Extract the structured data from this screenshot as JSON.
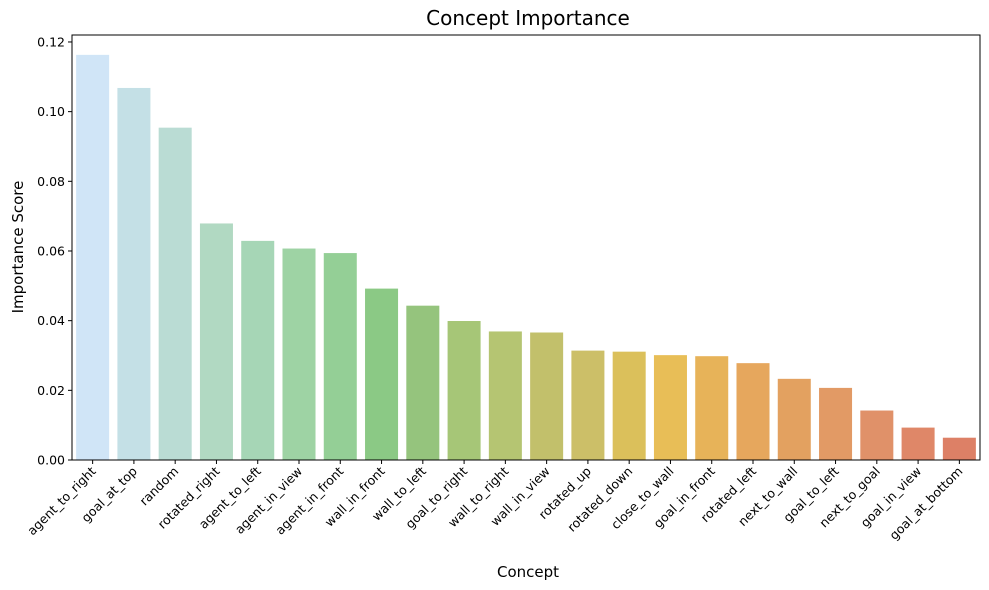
{
  "chart_data": {
    "type": "bar",
    "title": "Concept Importance",
    "xlabel": "Concept",
    "ylabel": "Importance Score",
    "ylim": [
      0,
      0.122
    ],
    "yticks": [
      "0.00",
      "0.02",
      "0.04",
      "0.06",
      "0.08",
      "0.10",
      "0.12"
    ],
    "grid": false,
    "categories": [
      "agent_to_right",
      "goal_at_top",
      "random",
      "rotated_right",
      "agent_to_left",
      "agent_in_view",
      "agent_in_front",
      "wall_in_front",
      "wall_to_left",
      "goal_to_right",
      "wall_to_right",
      "wall_in_view",
      "rotated_up",
      "rotated_down",
      "close_to_wall",
      "goal_in_front",
      "rotated_left",
      "next_to_wall",
      "goal_to_left",
      "next_to_goal",
      "goal_in_view",
      "goal_at_bottom"
    ],
    "values": [
      0.1163,
      0.1068,
      0.0954,
      0.0679,
      0.0629,
      0.0607,
      0.0594,
      0.0492,
      0.0443,
      0.0399,
      0.0369,
      0.0366,
      0.0314,
      0.0311,
      0.0301,
      0.0298,
      0.0278,
      0.0233,
      0.0207,
      0.0142,
      0.0093,
      0.0064
    ],
    "colors": [
      "#d0e5f7",
      "#c4e0e6",
      "#badcd4",
      "#b1d9c2",
      "#a6d6b6",
      "#9ed3a4",
      "#94cf96",
      "#8bc985",
      "#95c47d",
      "#a6c677",
      "#b5c572",
      "#c2c06b",
      "#ccbf68",
      "#dbc05b",
      "#e8be57",
      "#e7b359",
      "#e6a75d",
      "#e3a160",
      "#e29a65",
      "#e09169",
      "#df8768",
      "#dd8066"
    ]
  }
}
